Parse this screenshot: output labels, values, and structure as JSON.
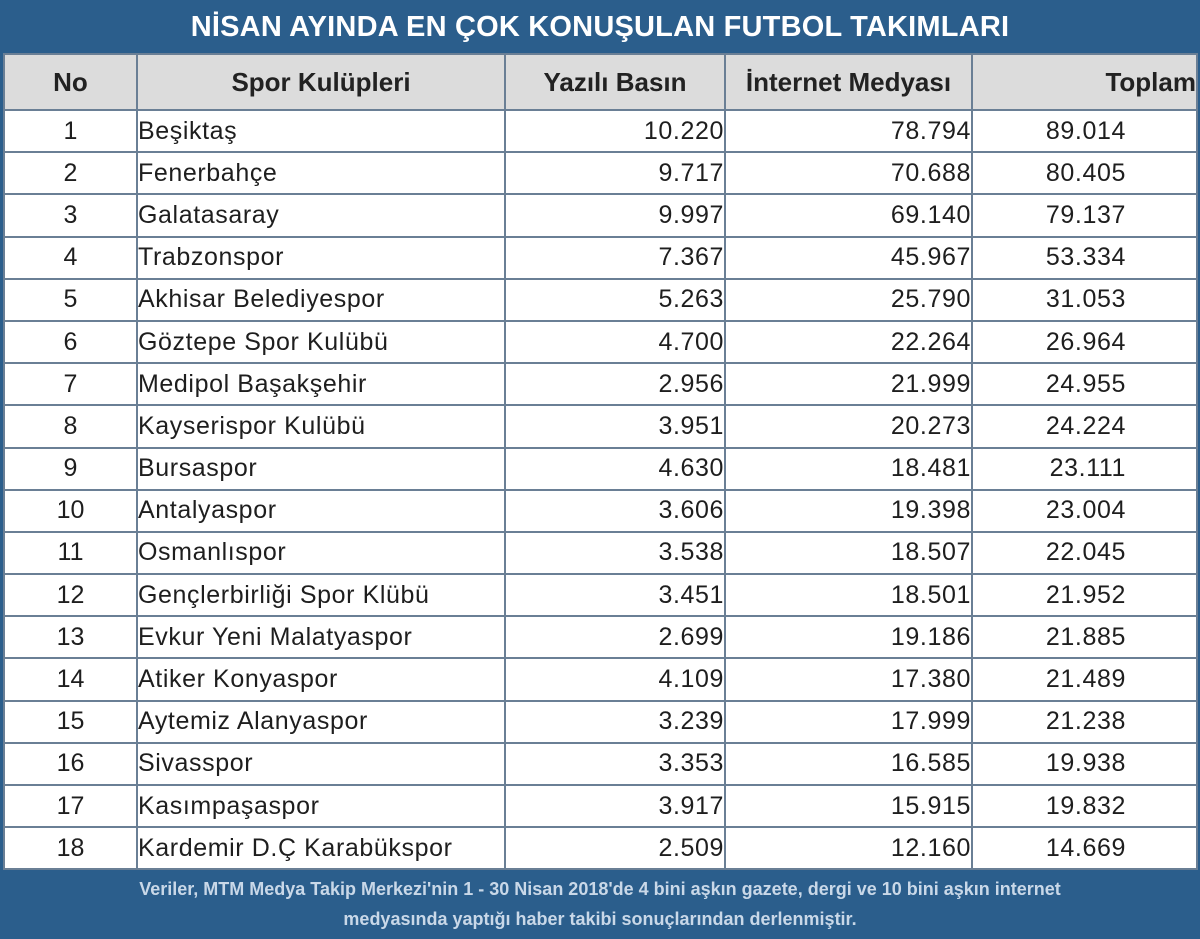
{
  "title": "NİSAN AYINDA EN ÇOK KONUŞULAN FUTBOL TAKIMLARI",
  "columns": [
    "No",
    "Spor Kulüpleri",
    "Yazılı Basın",
    "İnternet Medyası",
    "Toplam"
  ],
  "rows": [
    [
      "1",
      "Beşiktaş",
      "10.220",
      "78.794",
      "89.014"
    ],
    [
      "2",
      "Fenerbahçe",
      "9.717",
      "70.688",
      "80.405"
    ],
    [
      "3",
      "Galatasaray",
      "9.997",
      "69.140",
      "79.137"
    ],
    [
      "4",
      "Trabzonspor",
      "7.367",
      "45.967",
      "53.334"
    ],
    [
      "5",
      "Akhisar Belediyespor",
      "5.263",
      "25.790",
      "31.053"
    ],
    [
      "6",
      "Göztepe Spor Kulübü",
      "4.700",
      "22.264",
      "26.964"
    ],
    [
      "7",
      "Medipol Başakşehir",
      "2.956",
      "21.999",
      "24.955"
    ],
    [
      "8",
      "Kayserispor Kulübü",
      "3.951",
      "20.273",
      "24.224"
    ],
    [
      "9",
      "Bursaspor",
      "4.630",
      "18.481",
      "23.111"
    ],
    [
      "10",
      "Antalyaspor",
      "3.606",
      "19.398",
      "23.004"
    ],
    [
      "11",
      "Osmanlıspor",
      "3.538",
      "18.507",
      "22.045"
    ],
    [
      "12",
      "Gençlerbirliği Spor Klübü",
      "3.451",
      "18.501",
      "21.952"
    ],
    [
      "13",
      "Evkur Yeni Malatyaspor",
      "2.699",
      "19.186",
      "21.885"
    ],
    [
      "14",
      "Atiker Konyaspor",
      "4.109",
      "17.380",
      "21.489"
    ],
    [
      "15",
      "Aytemiz Alanyaspor",
      "3.239",
      "17.999",
      "21.238"
    ],
    [
      "16",
      "Sivasspor",
      "3.353",
      "16.585",
      "19.938"
    ],
    [
      "17",
      "Kasımpaşaspor",
      "3.917",
      "15.915",
      "19.832"
    ],
    [
      "18",
      "Kardemir D.Ç Karabükspor",
      "2.509",
      "12.160",
      "14.669"
    ]
  ],
  "footer": {
    "line1": "Veriler, MTM Medya Takip Merkezi'nin 1 - 30 Nisan 2018'de 4 bini aşkın gazete, dergi ve 10 bini aşkın internet",
    "line2": "medyasında yaptığı haber takibi sonuçlarından derlenmiştir."
  },
  "colors": {
    "frame": "#2b5e8c",
    "header_bg": "#dcdcdc",
    "grid": "#6a7f95"
  }
}
